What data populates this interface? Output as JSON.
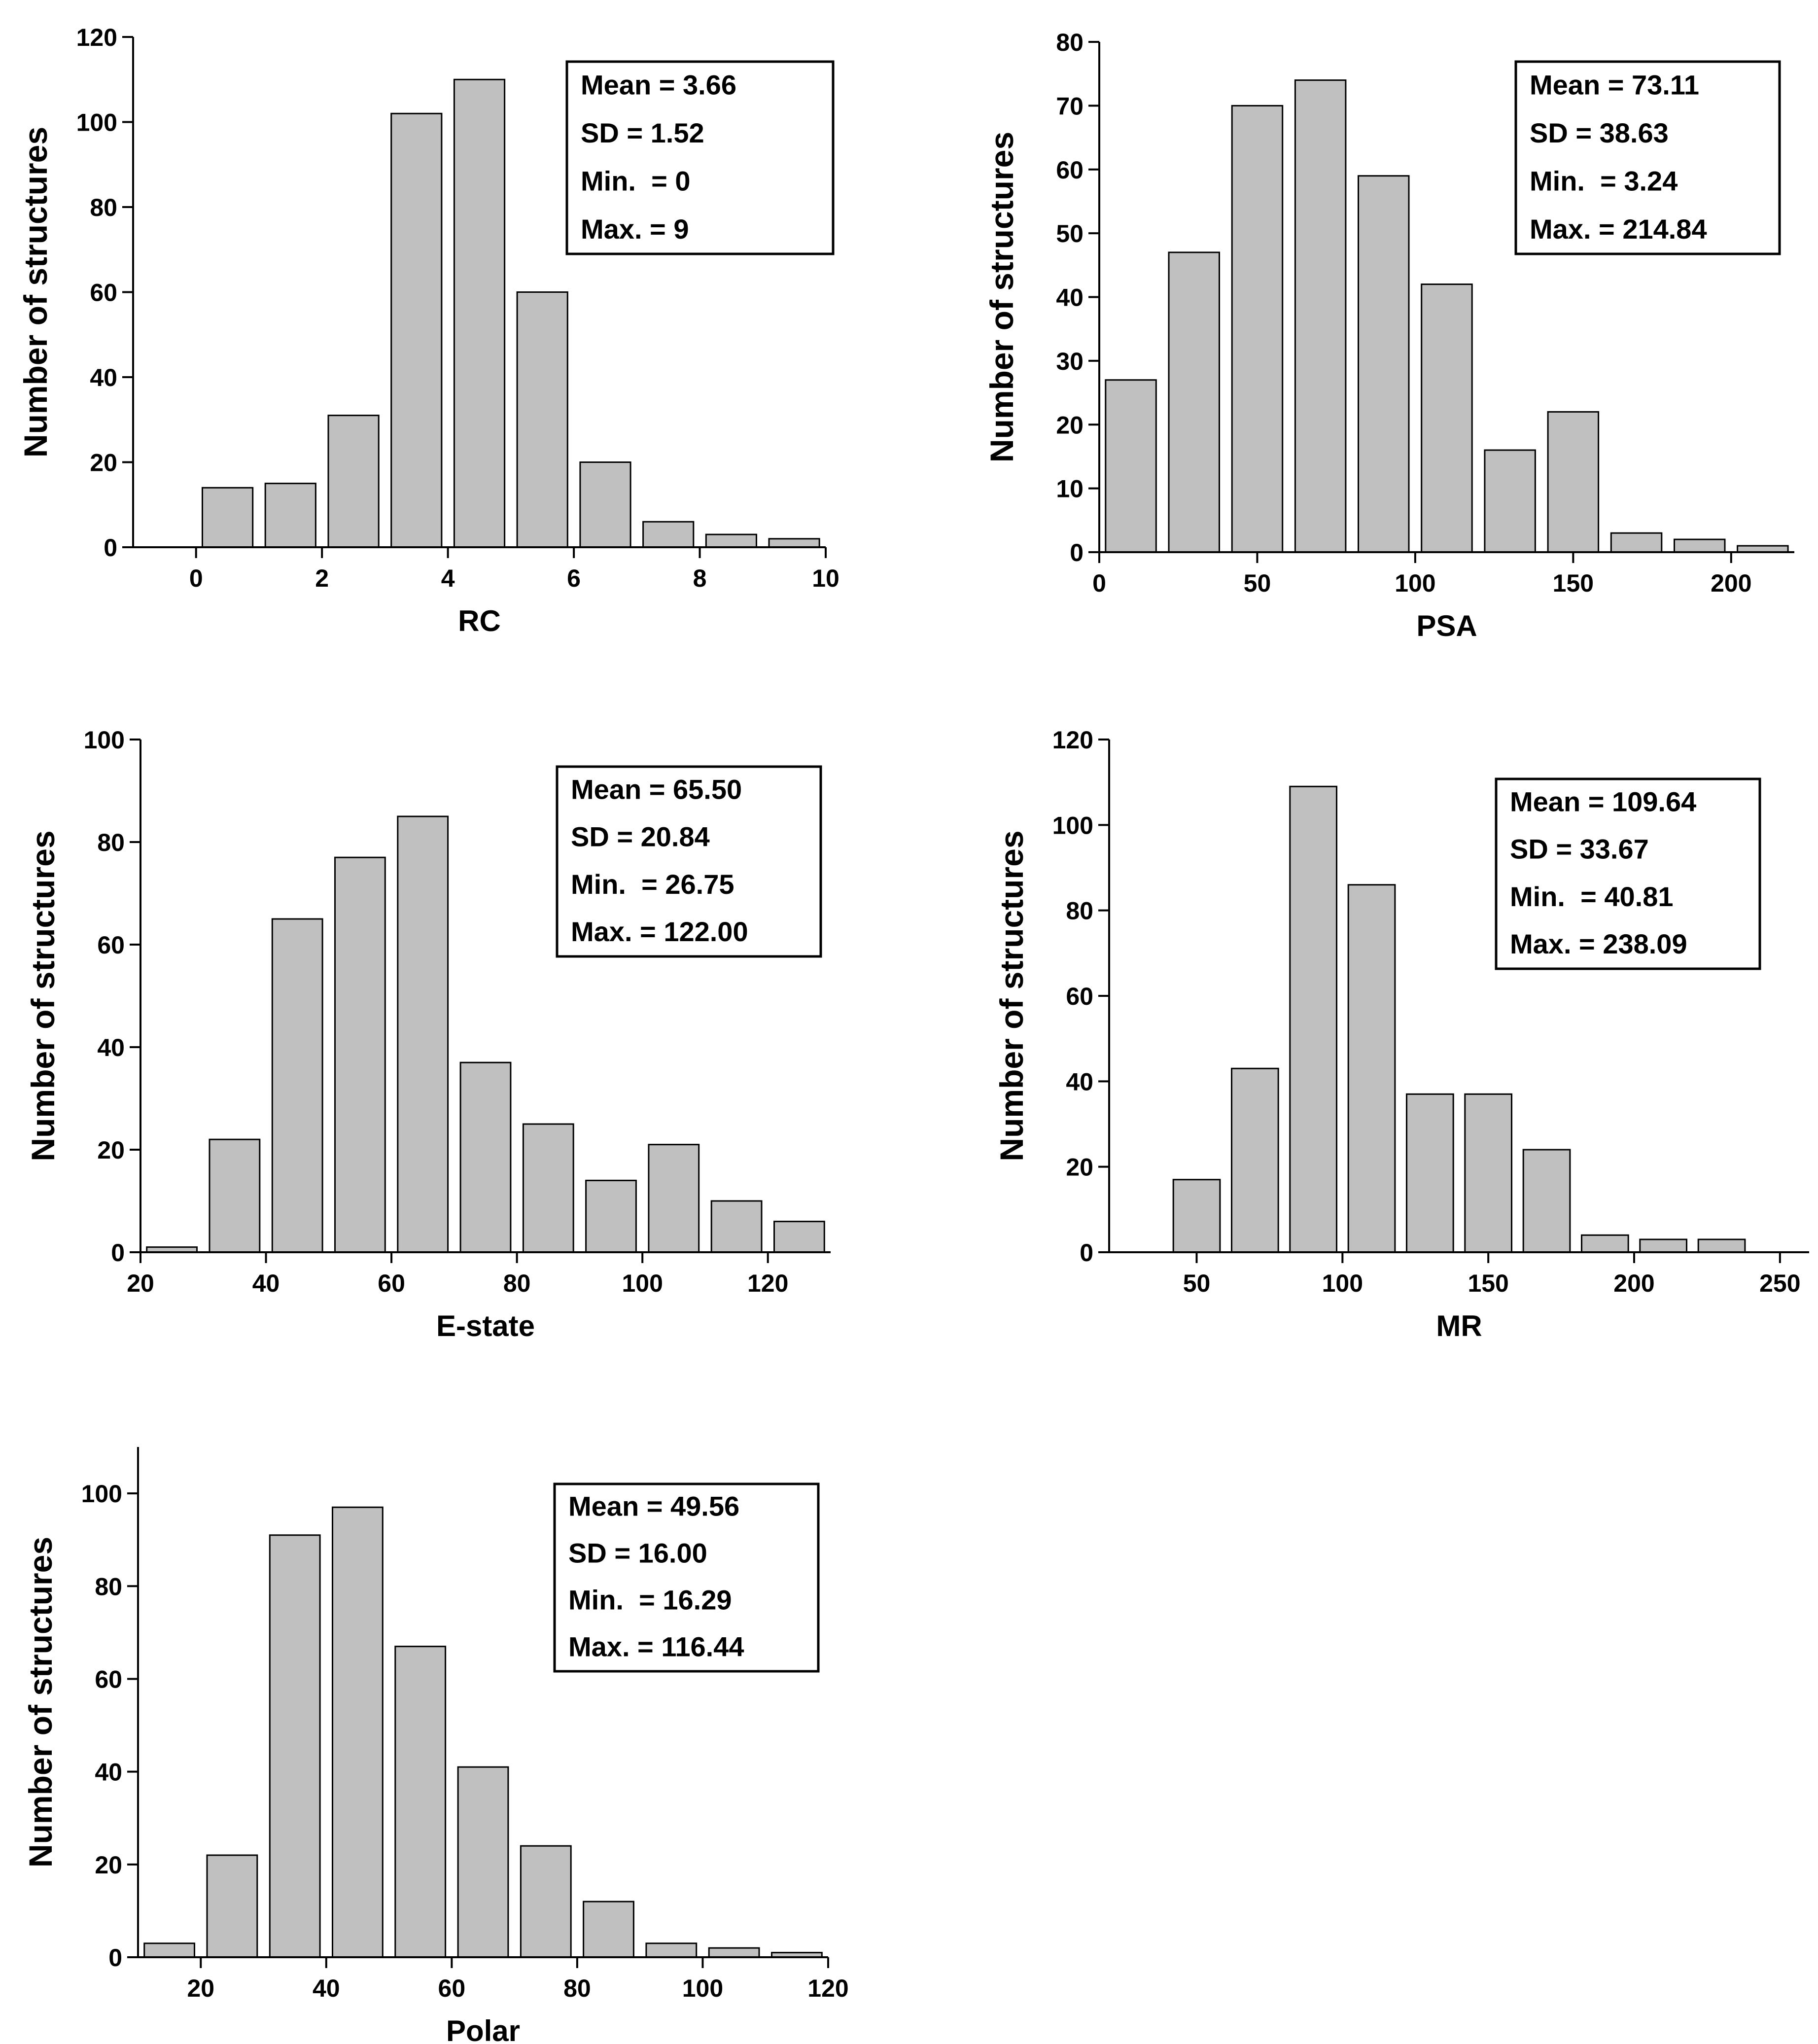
{
  "chart_data": [
    {
      "type": "bar",
      "xlabel": "RC",
      "ylabel": "Number of structures",
      "xlim": [
        -1,
        10
      ],
      "ylim": [
        0,
        120
      ],
      "xticks": [
        "0",
        "2",
        "4",
        "6",
        "8",
        "10"
      ],
      "yticks": [
        "0",
        "20",
        "40",
        "60",
        "80",
        "100",
        "120"
      ],
      "bin_width": 1,
      "x": [
        0.5,
        1.5,
        2.5,
        3.5,
        4.5,
        5.5,
        6.5,
        7.5,
        8.5,
        9.5
      ],
      "values": [
        14,
        15,
        31,
        102,
        110,
        60,
        20,
        6,
        3,
        2
      ],
      "stats": [
        "Mean = 3.66",
        "SD = 1.52",
        "Min.  = 0",
        "Max. = 9"
      ],
      "stats_position": "top-right",
      "grid": false,
      "bar_color": "#c0c0c0"
    },
    {
      "type": "bar",
      "xlabel": "PSA",
      "ylabel": "Number of structures",
      "xlim": [
        0,
        220
      ],
      "ylim": [
        0,
        80
      ],
      "xticks": [
        "0",
        "50",
        "100",
        "150",
        "200"
      ],
      "yticks": [
        "0",
        "10",
        "20",
        "30",
        "40",
        "50",
        "60",
        "70",
        "80"
      ],
      "bin_width": 20,
      "x": [
        10,
        30,
        50,
        70,
        90,
        110,
        130,
        150,
        170,
        190,
        210
      ],
      "values": [
        27,
        47,
        70,
        74,
        59,
        42,
        16,
        22,
        3,
        2,
        1
      ],
      "stats": [
        "Mean = 73.11",
        "SD = 38.63",
        "Min.  = 3.24",
        "Max. = 214.84"
      ],
      "stats_position": "top-right",
      "grid": false,
      "bar_color": "#c0c0c0"
    },
    {
      "type": "bar",
      "xlabel": "E-state",
      "ylabel": "Number of structures",
      "xlim": [
        20,
        130
      ],
      "ylim": [
        0,
        100
      ],
      "xticks": [
        "20",
        "40",
        "60",
        "80",
        "100",
        "120"
      ],
      "yticks": [
        "0",
        "20",
        "40",
        "60",
        "80",
        "100"
      ],
      "bin_width": 10,
      "x": [
        25,
        35,
        45,
        55,
        65,
        75,
        85,
        95,
        105,
        115,
        125
      ],
      "values": [
        1,
        22,
        65,
        77,
        85,
        37,
        25,
        14,
        21,
        10,
        6
      ],
      "stats": [
        "Mean = 65.50",
        "SD = 20.84",
        "Min.  = 26.75",
        "Max. = 122.00"
      ],
      "stats_position": "top-right",
      "grid": false,
      "bar_color": "#c0c0c0"
    },
    {
      "type": "bar",
      "xlabel": "MR",
      "ylabel": "Number of structures",
      "xlim": [
        20,
        260
      ],
      "ylim": [
        0,
        120
      ],
      "xticks": [
        "50",
        "100",
        "150",
        "200",
        "250"
      ],
      "yticks": [
        "0",
        "20",
        "40",
        "60",
        "80",
        "100",
        "120"
      ],
      "bin_width": 20,
      "x": [
        50,
        70,
        90,
        110,
        130,
        150,
        170,
        190,
        210,
        230
      ],
      "values": [
        17,
        43,
        109,
        86,
        37,
        37,
        24,
        4,
        3,
        3
      ],
      "stats": [
        "Mean = 109.64",
        "SD = 33.67",
        "Min.  = 40.81",
        "Max. = 238.09"
      ],
      "stats_position": "top-right",
      "grid": false,
      "bar_color": "#c0c0c0"
    },
    {
      "type": "bar",
      "xlabel": "Polar",
      "ylabel": "Number of structures",
      "xlim": [
        10,
        120
      ],
      "ylim": [
        0,
        110
      ],
      "xticks": [
        "20",
        "40",
        "60",
        "80",
        "100",
        "120"
      ],
      "yticks": [
        "0",
        "20",
        "40",
        "60",
        "80",
        "100"
      ],
      "bin_width": 10,
      "x": [
        15,
        25,
        35,
        45,
        55,
        65,
        75,
        85,
        95,
        105,
        115
      ],
      "values": [
        3,
        22,
        91,
        97,
        67,
        41,
        24,
        12,
        3,
        2,
        1
      ],
      "stats": [
        "Mean = 49.56",
        "SD = 16.00",
        "Min.  = 16.29",
        "Max. = 116.44"
      ],
      "stats_position": "top-right",
      "grid": false,
      "bar_color": "#c0c0c0"
    }
  ]
}
